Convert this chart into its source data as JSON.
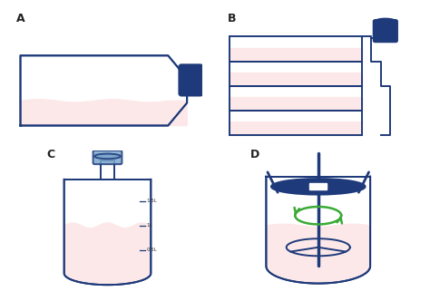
{
  "bg_color": "#ffffff",
  "outline_color": "#1e3a7a",
  "fill_color": "#fce8e8",
  "cap_color": "#1e3a7a",
  "cap_color_light": "#7ba7cc",
  "green_color": "#3aaa35",
  "label_color": "#1a1a1a",
  "labels": [
    "A",
    "B",
    "C",
    "D"
  ],
  "tick_labels": [
    "1.5L",
    "1L",
    "0.5L"
  ]
}
